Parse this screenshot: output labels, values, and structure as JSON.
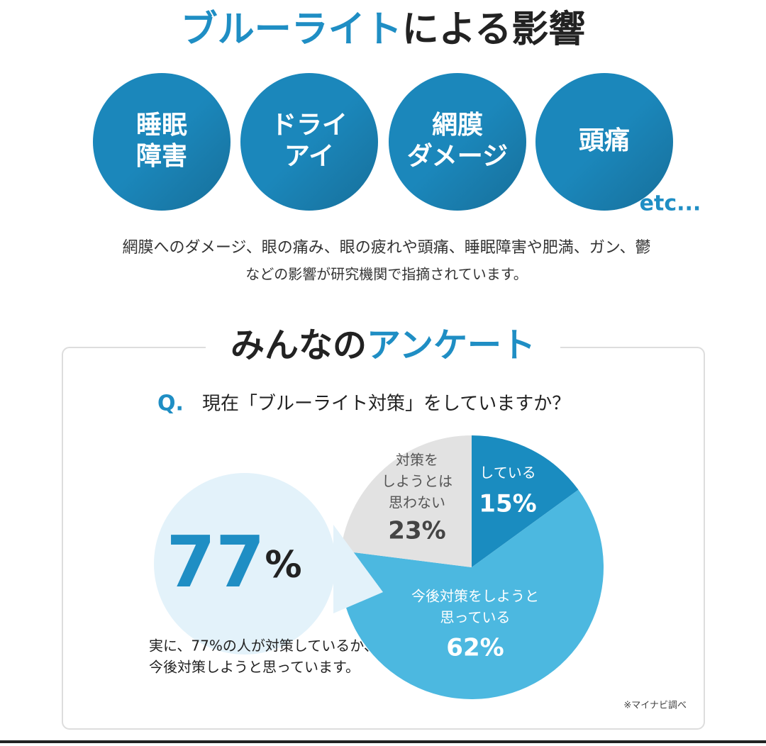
{
  "header": {
    "title": [
      "ブルーライト",
      "による影響"
    ]
  },
  "effects": {
    "circles": [
      [
        "睡眠",
        "障害"
      ],
      [
        "ドライ",
        "アイ"
      ],
      [
        "網膜",
        "ダメージ"
      ],
      [
        "頭痛"
      ]
    ],
    "etc": "etc...",
    "description": [
      "網膜へのダメージ、眼の痛み、眼の疲れや頭痛、睡眠障害や肥満、ガン、鬱",
      "などの影響が研究機関で指摘されています。"
    ]
  },
  "survey": {
    "title": [
      "みんなの",
      "アンケート"
    ],
    "q_mark": "Q.",
    "question": "現在「ブルーライト対策」をしていますか？",
    "highlight": [
      "77",
      "%"
    ],
    "summary": [
      "実に、77%の人が対策しているか、",
      "今後対策しようと思っています。"
    ],
    "source": "※マイナビ調べ"
  },
  "chart_data": {
    "type": "pie",
    "categories": [
      [
        "している"
      ],
      [
        "今後対策をしようと",
        "思っている"
      ],
      [
        "対策を",
        "しようとは",
        "思わない"
      ]
    ],
    "values": [
      15,
      62,
      23
    ],
    "value_labels": [
      "15%",
      "62%",
      "23%"
    ],
    "colors": [
      "#1a8cc0",
      "#4cb8e0",
      "#e2e2e2"
    ]
  }
}
